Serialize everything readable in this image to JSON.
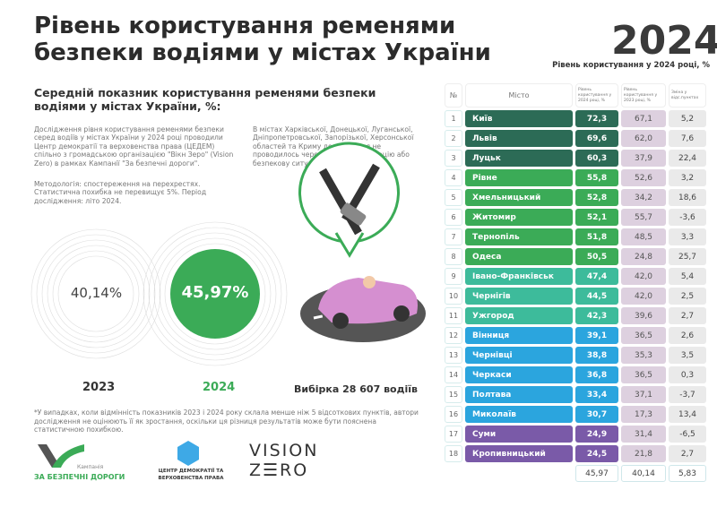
{
  "title": "Рівень користування ременями безпеки водіями у містах України",
  "year": "2024",
  "year_subtitle": "Рівень користування у 2024 році, %",
  "section_title": "Середній показник користування ременями безпеки водіями у містах України, %:",
  "paragraph1": "Дослідження рівня користування ременями безпеки серед водіїв  у містах України у 2024 році проводили Центр демократії та верховенства права (ЦЕДЕМ) спільно з громадською організацією \"Вікн Зеро\" (Vision Zero) в рамках Кампанії \"За безпечні дороги\".",
  "paragraph2": "В містах Харківської, Донецької, Луганської, Дніпропетровської, Запорізької, Херсонської областей та Криму дослідження не проводилось через воєнні дії, окупацію або безпекову ситуацію.",
  "methodology": "Методологія: спостереження на перехрестях. Статистична похибка не перевищує 5%. Період дослідження: літо 2024.",
  "avg_2023": {
    "value": "40,14%",
    "label": "2023"
  },
  "avg_2024": {
    "value": "45,97%",
    "label": "2024"
  },
  "sample": "Вибірка 28 607 водіїв",
  "footnote": "*У випадках, коли відмінність показників 2023 і 2024 року склала менше ніж 5 відсоткових пунктів, автори дослідження не оцінюють її як зростання, оскільки ця різниця результатів може бути пояснена статистичною похибкою.",
  "logos": {
    "campaign_small": "Кампанія",
    "campaign": "ЗА БЕЗПЕЧНІ ДОРОГИ",
    "cedem": "ЦЕНТР ДЕМОКРАТІЇ ТА ВЕРХОВЕНСТВА ПРАВА",
    "vz1": "VISION",
    "vz2": "Z☰RO"
  },
  "table": {
    "headers": [
      "№",
      "Місто",
      "Рівень користування у 2024 році, %",
      "Рівень користування у 2023 році, %",
      "Зміна у відс.пунктах"
    ],
    "rows": [
      [
        "1",
        "Київ",
        "72,3",
        "67,1",
        "5,2",
        "#2c6b56"
      ],
      [
        "2",
        "Львів",
        "69,6",
        "62,0",
        "7,6",
        "#2c6b56"
      ],
      [
        "3",
        "Луцьк",
        "60,3",
        "37,9",
        "22,4",
        "#2c6b56"
      ],
      [
        "4",
        "Рівне",
        "55,8",
        "52,6",
        "3,2",
        "#3bab57"
      ],
      [
        "5",
        "Хмельницький",
        "52,8",
        "34,2",
        "18,6",
        "#3bab57"
      ],
      [
        "6",
        "Житомир",
        "52,1",
        "55,7",
        "-3,6",
        "#3bab57"
      ],
      [
        "7",
        "Тернопіль",
        "51,8",
        "48,5",
        "3,3",
        "#3bab57"
      ],
      [
        "8",
        "Одеса",
        "50,5",
        "24,8",
        "25,7",
        "#3bab57"
      ],
      [
        "9",
        "Івано-Франківськ",
        "47,4",
        "42,0",
        "5,4",
        "#3dbb9b"
      ],
      [
        "10",
        "Чернігів",
        "44,5",
        "42,0",
        "2,5",
        "#3dbb9b"
      ],
      [
        "11",
        "Ужгород",
        "42,3",
        "39,6",
        "2,7",
        "#3dbb9b"
      ],
      [
        "12",
        "Вінниця",
        "39,1",
        "36,5",
        "2,6",
        "#2ba5de"
      ],
      [
        "13",
        "Чернівці",
        "38,8",
        "35,3",
        "3,5",
        "#2ba5de"
      ],
      [
        "14",
        "Черкаси",
        "36,8",
        "36,5",
        "0,3",
        "#2ba5de"
      ],
      [
        "15",
        "Полтава",
        "33,4",
        "37,1",
        "-3,7",
        "#2ba5de"
      ],
      [
        "16",
        "Миколаїв",
        "30,7",
        "17,3",
        "13,4",
        "#2ba5de"
      ],
      [
        "17",
        "Суми",
        "24,9",
        "31,4",
        "-6,5",
        "#7a5aa8"
      ],
      [
        "18",
        "Кропивницький",
        "24,5",
        "21,8",
        "2,7",
        "#7a5aa8"
      ]
    ],
    "totals": [
      "45,97",
      "40,14",
      "5,83"
    ]
  }
}
